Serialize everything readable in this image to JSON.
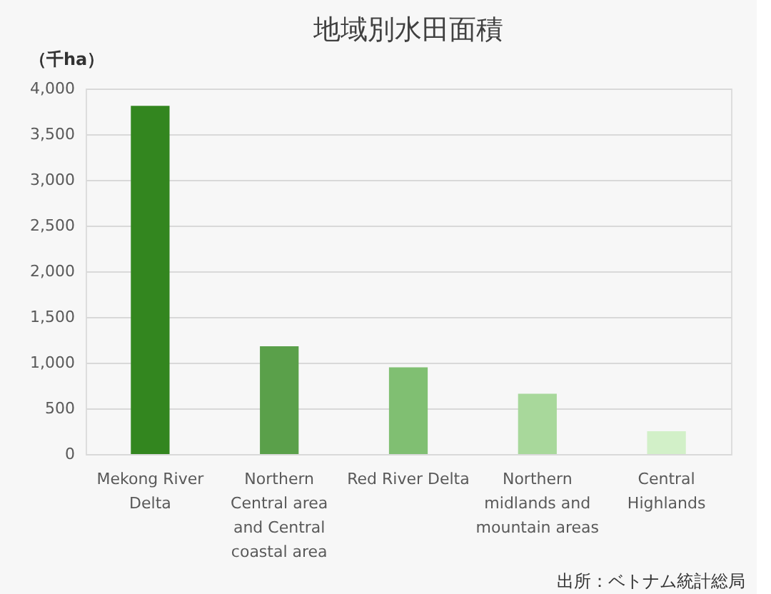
{
  "chart_data": {
    "type": "bar",
    "title": "地域別水田面積",
    "ylabel": "（千ha）",
    "categories": [
      "Mekong River Delta",
      "Northern Central area and Central coastal area",
      "Red River Delta",
      "Northern midlands and mountain areas",
      "Central Highlands"
    ],
    "values": [
      3810,
      1180,
      950,
      660,
      250
    ],
    "colors": [
      "#33861f",
      "#5aa04a",
      "#80bf72",
      "#a8d89b",
      "#d2f0c8"
    ],
    "ylim": [
      0,
      4000
    ],
    "yticks": [
      0,
      500,
      {
        "value": 1000,
        "label": "1,000"
      },
      {
        "value": 1500,
        "label": "1,500"
      },
      {
        "value": 2000,
        "label": "2,000"
      },
      {
        "value": 2500,
        "label": "2,500"
      },
      {
        "value": 3000,
        "label": "3,000"
      },
      {
        "value": 3500,
        "label": "3,500"
      },
      {
        "value": 4000,
        "label": "4,000"
      }
    ],
    "grid": "y",
    "annotations": [
      "出所：ベトナム統計総局"
    ]
  }
}
